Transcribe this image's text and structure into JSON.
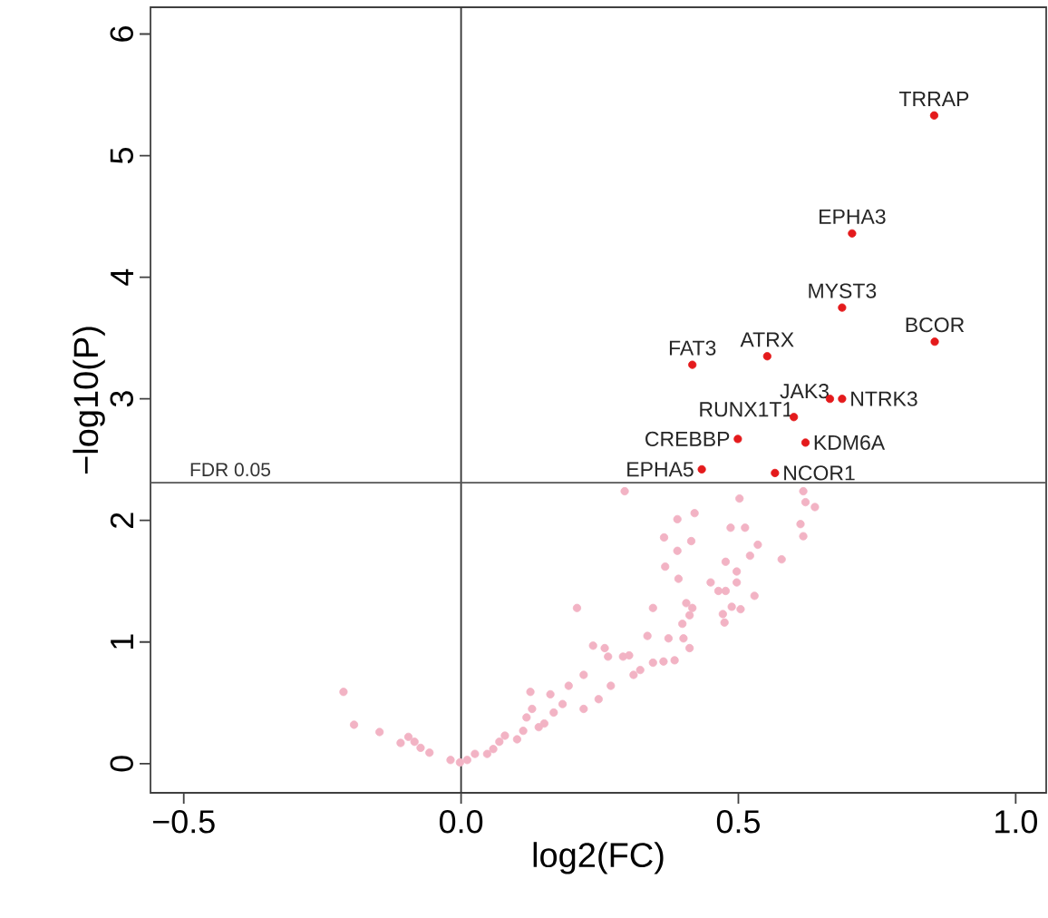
{
  "chart_data": {
    "type": "scatter",
    "xlabel": "log2(FC)",
    "ylabel": "−log10(P)",
    "xlim": [
      -0.56,
      1.055
    ],
    "ylim": [
      -0.24,
      6.22
    ],
    "xticks": [
      {
        "value": -0.5,
        "label": "−0.5"
      },
      {
        "value": 0,
        "label": "0.0"
      },
      {
        "value": 0.5,
        "label": "0.5"
      },
      {
        "value": 1,
        "label": "1.0"
      }
    ],
    "yticks": [
      0,
      1,
      2,
      3,
      4,
      5,
      6
    ],
    "marker": "circle",
    "series": [
      {
        "color": "#f2b3c4",
        "x": [
          -0.212,
          -0.193,
          -0.147,
          -0.109,
          -0.095,
          -0.084,
          -0.073,
          -0.057,
          -0.019,
          -0.002,
          0.011,
          0.025,
          0.047,
          0.058,
          0.069,
          0.079,
          0.101,
          0.112,
          0.118,
          0.128,
          0.125,
          0.14,
          0.161,
          0.167,
          0.183,
          0.194,
          0.15,
          0.221,
          0.221,
          0.238,
          0.248,
          0.259,
          0.265,
          0.27,
          0.292,
          0.303,
          0.311,
          0.323,
          0.336,
          0.346,
          0.346,
          0.209,
          0.365,
          0.374,
          0.385,
          0.39,
          0.366,
          0.368,
          0.39,
          0.392,
          0.399,
          0.401,
          0.406,
          0.412,
          0.415,
          0.421,
          0.412,
          0.417,
          0.45,
          0.464,
          0.477,
          0.477,
          0.486,
          0.472,
          0.475,
          0.488,
          0.497,
          0.497,
          0.504,
          0.512,
          0.521,
          0.529,
          0.535,
          0.502,
          0.578,
          0.617,
          0.621,
          0.638,
          0.612,
          0.617,
          0.295
        ],
        "values": [
          0.59,
          0.32,
          0.26,
          0.17,
          0.22,
          0.18,
          0.13,
          0.09,
          0.03,
          0.01,
          0.03,
          0.08,
          0.08,
          0.12,
          0.18,
          0.23,
          0.2,
          0.27,
          0.38,
          0.45,
          0.59,
          0.3,
          0.57,
          0.42,
          0.49,
          0.64,
          0.33,
          0.45,
          0.73,
          0.97,
          0.53,
          0.95,
          0.88,
          0.64,
          0.88,
          0.89,
          0.73,
          0.77,
          1.05,
          0.83,
          1.28,
          1.28,
          0.84,
          1.03,
          0.85,
          2.01,
          1.86,
          1.62,
          1.75,
          1.52,
          1.15,
          1.03,
          1.32,
          0.95,
          1.83,
          2.06,
          1.22,
          1.28,
          1.49,
          1.42,
          1.66,
          1.42,
          1.94,
          1.23,
          1.16,
          1.29,
          1.58,
          1.49,
          1.27,
          1.94,
          1.71,
          1.38,
          1.8,
          2.18,
          1.68,
          2.24,
          2.15,
          2.11,
          1.97,
          1.87,
          2.24
        ]
      },
      {
        "color": "#e41a1c",
        "x": [
          0.853,
          0.705,
          0.687,
          0.854,
          0.417,
          0.552,
          0.665,
          0.687,
          0.6,
          0.499,
          0.621,
          0.434,
          0.566
        ],
        "values": [
          5.33,
          4.36,
          3.75,
          3.47,
          3.28,
          3.35,
          3.0,
          3.0,
          2.85,
          2.67,
          2.64,
          2.42,
          2.39
        ]
      }
    ],
    "annotations": [
      {
        "text": "TRRAP",
        "x": 0.853,
        "y": 5.33
      },
      {
        "text": "EPHA3",
        "x": 0.705,
        "y": 4.36
      },
      {
        "text": "MYST3",
        "x": 0.687,
        "y": 3.75
      },
      {
        "text": "BCOR",
        "x": 0.854,
        "y": 3.47
      },
      {
        "text": "FAT3",
        "x": 0.417,
        "y": 3.28
      },
      {
        "text": "ATRX",
        "x": 0.552,
        "y": 3.35
      },
      {
        "text": "JAK3",
        "x": 0.665,
        "y": 3.0
      },
      {
        "text": "NTRK3",
        "x": 0.687,
        "y": 3.0
      },
      {
        "text": "RUNX1T1",
        "x": 0.6,
        "y": 2.85
      },
      {
        "text": "CREBBP",
        "x": 0.499,
        "y": 2.67
      },
      {
        "text": "KDM6A",
        "x": 0.621,
        "y": 2.64
      },
      {
        "text": "EPHA5",
        "x": 0.434,
        "y": 2.42
      },
      {
        "text": "NCOR1",
        "x": 0.566,
        "y": 2.39
      }
    ],
    "ref_lines": [
      {
        "axis": "x",
        "value": 0,
        "color": "#333333"
      },
      {
        "axis": "y",
        "value": 2.31,
        "label": "FDR 0.05",
        "color": "#555555"
      }
    ]
  }
}
